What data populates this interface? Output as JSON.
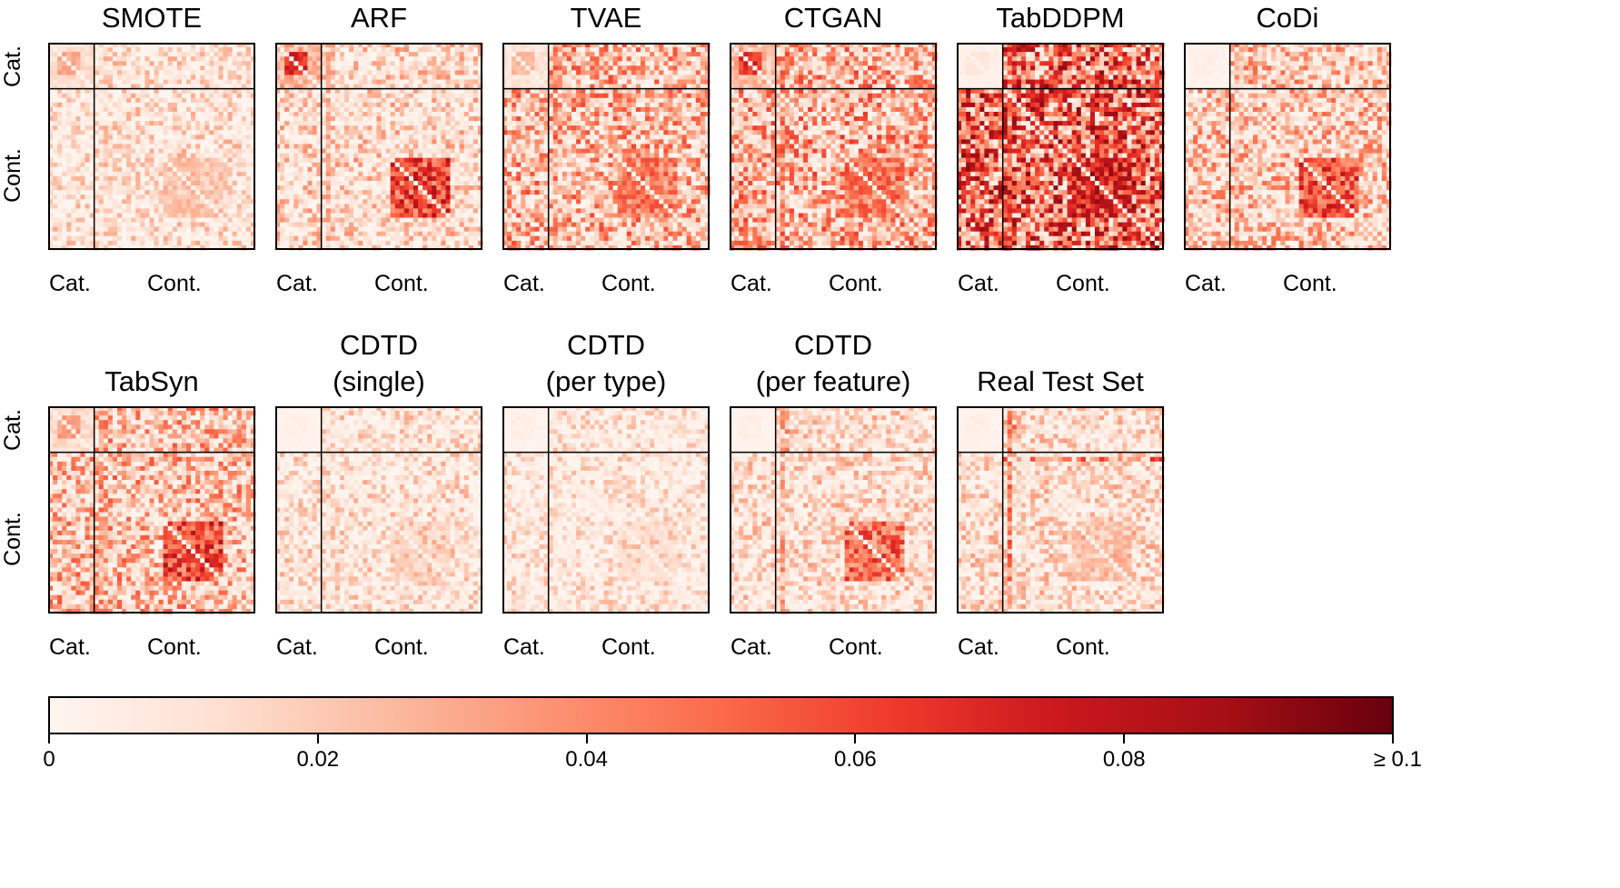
{
  "chart_data": {
    "type": "heatmap",
    "value_range": [
      0,
      0.1
    ],
    "colormap": "Reds",
    "colorbar": {
      "ticks": [
        0,
        0.02,
        0.04,
        0.06,
        0.08,
        0.1
      ],
      "tick_labels": [
        "0",
        "0.02",
        "0.04",
        "0.06",
        "0.08",
        "≥ 0.1"
      ]
    },
    "block_labels": {
      "categorical": "Cat.",
      "continuous": "Cont."
    },
    "panels": [
      {
        "title": "SMOTE",
        "intensity": 0.15,
        "cat_block": 0.35,
        "cont_cluster": 0.3,
        "row_band": 0.0,
        "col_band": 0.1
      },
      {
        "title": "ARF",
        "intensity": 0.25,
        "cat_block": 0.8,
        "cont_cluster": 0.85,
        "row_band": 0.1,
        "col_band": 0.4
      },
      {
        "title": "TVAE",
        "intensity": 0.5,
        "cat_block": 0.3,
        "cont_cluster": 0.6,
        "row_band": 0.6,
        "col_band": 0.4
      },
      {
        "title": "CTGAN",
        "intensity": 0.55,
        "cat_block": 0.75,
        "cont_cluster": 0.6,
        "row_band": 0.3,
        "col_band": 0.6
      },
      {
        "title": "TabDDPM",
        "intensity": 0.9,
        "cat_block": 0.1,
        "cont_cluster": 0.9,
        "row_band": 0.9,
        "col_band": 0.7
      },
      {
        "title": "CoDi",
        "intensity": 0.4,
        "cat_block": 0.05,
        "cont_cluster": 0.8,
        "row_band": 0.3,
        "col_band": 0.3
      },
      {
        "title": "TabSyn",
        "intensity": 0.45,
        "cat_block": 0.4,
        "cont_cluster": 0.85,
        "row_band": 0.2,
        "col_band": 0.4
      },
      {
        "title": "CDTD\n(single)",
        "intensity": 0.15,
        "cat_block": 0.05,
        "cont_cluster": 0.2,
        "row_band": 0.0,
        "col_band": 0.05
      },
      {
        "title": "CDTD\n(per type)",
        "intensity": 0.1,
        "cat_block": 0.05,
        "cont_cluster": 0.15,
        "row_band": 0.0,
        "col_band": 0.05
      },
      {
        "title": "CDTD\n(per feature)",
        "intensity": 0.2,
        "cat_block": 0.05,
        "cont_cluster": 0.7,
        "row_band": 0.3,
        "col_band": 0.5
      },
      {
        "title": "Real Test Set",
        "intensity": 0.2,
        "cat_block": 0.05,
        "cont_cluster": 0.3,
        "row_band": 0.7,
        "col_band": 0.6
      }
    ]
  }
}
